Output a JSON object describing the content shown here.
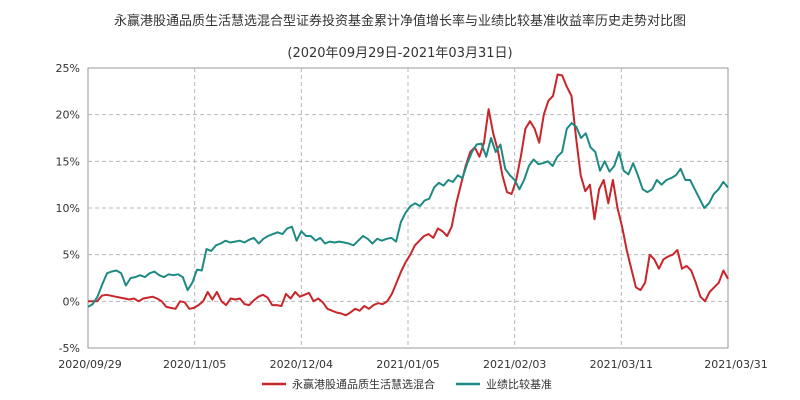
{
  "title": "永赢港股通品质生活慧选混合型证券投资基金累计净值增长率与业绩比较基准收益率历史走势对比图",
  "subtitle": "(2020年09月29日-2021年03月31日)",
  "chart_data": {
    "type": "line",
    "title": "永赢港股通品质生活慧选混合型证券投资基金累计净值增长率与业绩比较基准收益率历史走势对比图",
    "subtitle": "(2020年09月29日-2021年03月31日)",
    "y_ticks": [
      "25%",
      "20%",
      "15%",
      "10%",
      "5%",
      "0%",
      "-5%"
    ],
    "x_ticks": [
      "2020/09/29",
      "2020/11/05",
      "2020/12/04",
      "2021/01/05",
      "2021/02/03",
      "2021/03/11",
      "2021/03/31"
    ],
    "ylim": [
      -5,
      25
    ],
    "grid": true,
    "legend_position": "bottom",
    "series": [
      {
        "name": "永赢港股通品质生活慧选混合",
        "color": "#c8262a",
        "values": [
          0.0,
          0.0,
          0.0,
          0.6,
          0.7,
          0.6,
          0.5,
          0.4,
          0.3,
          0.2,
          0.3,
          0.0,
          0.3,
          0.4,
          0.5,
          0.3,
          0.0,
          -0.6,
          -0.7,
          -0.8,
          0.0,
          -0.1,
          -0.8,
          -0.7,
          -0.4,
          0.0,
          1.0,
          0.2,
          1.0,
          0.0,
          -0.4,
          0.3,
          0.2,
          0.3,
          -0.3,
          -0.4,
          0.1,
          0.5,
          0.7,
          0.4,
          -0.4,
          -0.4,
          -0.5,
          0.8,
          0.3,
          1.0,
          0.5,
          0.7,
          0.9,
          0.0,
          0.3,
          -0.1,
          -0.8,
          -1.0,
          -1.2,
          -1.3,
          -1.5,
          -1.2,
          -0.8,
          -1.0,
          -0.5,
          -0.8,
          -0.4,
          -0.2,
          -0.3,
          0.0,
          0.8,
          2.0,
          3.2,
          4.2,
          5.0,
          6.0,
          6.5,
          7.0,
          7.2,
          6.8,
          7.8,
          7.5,
          7.0,
          8.0,
          10.5,
          12.5,
          14.5,
          16.0,
          16.5,
          15.5,
          17.0,
          20.6,
          18.0,
          16.2,
          13.5,
          11.7,
          11.5,
          13.0,
          15.5,
          18.5,
          19.3,
          18.5,
          17.0,
          20.0,
          21.5,
          22.0,
          24.3,
          24.2,
          23.0,
          22.0,
          17.5,
          13.5,
          11.8,
          12.5,
          8.8,
          12.0,
          13.0,
          10.5,
          13.0,
          10.0,
          8.0,
          5.5,
          3.5,
          1.5,
          1.2,
          2.0,
          5.0,
          4.5,
          3.5,
          4.5,
          4.8,
          5.0,
          5.5,
          3.5,
          3.8,
          3.3,
          2.0,
          0.5,
          0.0,
          1.0,
          1.5,
          2.0,
          3.3,
          2.4
        ]
      },
      {
        "name": "业绩比较基准",
        "color": "#1f8a84",
        "values": [
          -0.6,
          -0.3,
          0.5,
          1.8,
          3.0,
          3.2,
          3.3,
          3.0,
          1.7,
          2.5,
          2.6,
          2.8,
          2.6,
          3.0,
          3.2,
          2.8,
          2.6,
          2.9,
          2.8,
          2.9,
          2.6,
          1.2,
          2.0,
          3.4,
          3.3,
          5.6,
          5.4,
          6.0,
          6.2,
          6.5,
          6.3,
          6.4,
          6.5,
          6.3,
          6.6,
          6.8,
          6.2,
          6.7,
          7.0,
          7.2,
          7.4,
          7.2,
          7.8,
          8.0,
          6.5,
          7.5,
          7.0,
          7.0,
          6.5,
          6.8,
          6.2,
          6.4,
          6.3,
          6.4,
          6.3,
          6.2,
          6.0,
          6.5,
          7.0,
          6.7,
          6.2,
          6.7,
          6.5,
          6.7,
          6.8,
          6.4,
          8.5,
          9.5,
          10.2,
          10.5,
          10.2,
          10.8,
          11.0,
          12.2,
          12.7,
          12.4,
          13.0,
          12.8,
          13.5,
          13.2,
          14.8,
          16.0,
          16.8,
          16.9,
          15.5,
          17.5,
          16.0,
          16.8,
          14.2,
          13.5,
          13.0,
          12.0,
          13.0,
          14.5,
          15.2,
          14.7,
          14.8,
          15.0,
          14.5,
          15.5,
          16.0,
          18.5,
          19.1,
          18.7,
          17.5,
          18.0,
          16.5,
          16.0,
          14.0,
          15.0,
          13.9,
          14.5,
          16.0,
          14.0,
          13.6,
          14.8,
          13.5,
          12.0,
          11.7,
          12.0,
          13.0,
          12.5,
          13.0,
          13.2,
          13.5,
          14.2,
          13.0,
          13.0,
          12.0,
          11.0,
          10.0,
          10.5,
          11.5,
          12.0,
          12.8,
          12.2
        ]
      }
    ]
  }
}
